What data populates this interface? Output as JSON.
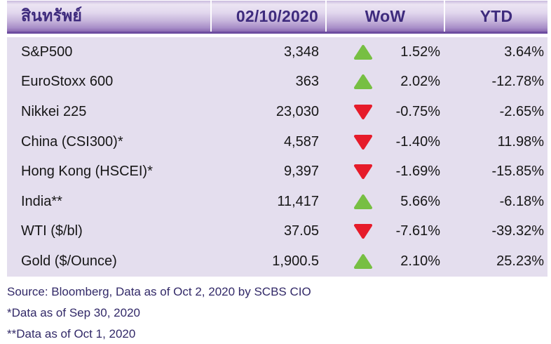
{
  "chart_data": {
    "type": "table",
    "columns": [
      "สินทรัพย์",
      "02/10/2020",
      "WoW",
      "YTD"
    ],
    "rows": [
      {
        "asset": "S&P500",
        "value": "3,348",
        "direction": "up",
        "wow": "1.52%",
        "ytd": "3.64%"
      },
      {
        "asset": "EuroStoxx 600",
        "value": "363",
        "direction": "up",
        "wow": "2.02%",
        "ytd": "-12.78%"
      },
      {
        "asset": "Nikkei 225",
        "value": "23,030",
        "direction": "down",
        "wow": "-0.75%",
        "ytd": "-2.65%"
      },
      {
        "asset": "China (CSI300)*",
        "value": "4,587",
        "direction": "down",
        "wow": "-1.40%",
        "ytd": "11.98%"
      },
      {
        "asset": "Hong Kong (HSCEI)*",
        "value": "9,397",
        "direction": "down",
        "wow": "-1.69%",
        "ytd": "-15.85%"
      },
      {
        "asset": "India**",
        "value": "11,417",
        "direction": "up",
        "wow": "5.66%",
        "ytd": "-6.18%"
      },
      {
        "asset": "WTI ($/bl)",
        "value": "37.05",
        "direction": "down",
        "wow": "-7.61%",
        "ytd": "-39.32%"
      },
      {
        "asset": "Gold ($/Ounce)",
        "value": "1,900.5",
        "direction": "up",
        "wow": "2.10%",
        "ytd": "25.23%"
      }
    ],
    "footnotes": [
      "Source: Bloomberg, Data as of Oct 2, 2020 by SCBS CIO",
      "*Data as of Sep 30, 2020",
      "**Data as of Oct 1, 2020"
    ]
  },
  "header": {
    "asset_label": "สินทรัพย์",
    "date_label": "02/10/2020",
    "wow_label": "WoW",
    "ytd_label": "YTD"
  },
  "icons": {
    "up": "up-triangle-icon",
    "down": "down-triangle-icon"
  },
  "colors": {
    "up_green": "#77bf43",
    "down_red": "#e61b2a",
    "header_text": "#3e2b7d",
    "header_purple": "#8a68b0",
    "body_bg": "#e4deee",
    "footer_text": "#322968"
  }
}
